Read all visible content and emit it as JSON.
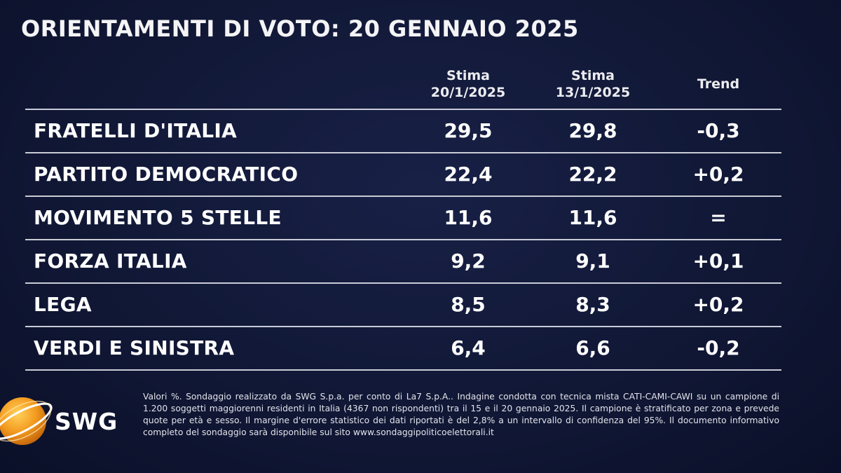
{
  "title": "ORIENTAMENTI DI VOTO: 20 GENNAIO 2025",
  "chart_data": {
    "type": "table",
    "title": "ORIENTAMENTI DI VOTO: 20 GENNAIO 2025",
    "columns": [
      {
        "line1": "Stima",
        "line2": "20/1/2025"
      },
      {
        "line1": "Stima",
        "line2": "13/1/2025"
      },
      {
        "line1": "Trend",
        "line2": ""
      }
    ],
    "rows": [
      {
        "party": "FRATELLI D'ITALIA",
        "current": "29,5",
        "previous": "29,8",
        "trend": "-0,3"
      },
      {
        "party": "PARTITO DEMOCRATICO",
        "current": "22,4",
        "previous": "22,2",
        "trend": "+0,2"
      },
      {
        "party": "MOVIMENTO 5 STELLE",
        "current": "11,6",
        "previous": "11,6",
        "trend": "="
      },
      {
        "party": "FORZA ITALIA",
        "current": "9,2",
        "previous": "9,1",
        "trend": "+0,1"
      },
      {
        "party": "LEGA",
        "current": "8,5",
        "previous": "8,3",
        "trend": "+0,2"
      },
      {
        "party": "VERDI E SINISTRA",
        "current": "6,4",
        "previous": "6,6",
        "trend": "-0,2"
      }
    ]
  },
  "logo": {
    "text": "SWG",
    "icon": "swg-globe-icon"
  },
  "footnote": "Valori %. Sondaggio realizzato da SWG S.p.a. per conto di La7 S.p.A.. Indagine condotta con tecnica mista CATI-CAMI-CAWI su un campione di 1.200 soggetti maggiorenni residenti in Italia (4367 non rispondenti) tra il 15 e il 20 gennaio 2025. Il campione è stratificato per zona e prevede quote per età e sesso. Il margine d'errore statistico dei dati riportati è del 2,8% a un intervallo di confidenza del 95%. Il documento informativo completo del sondaggio sarà disponibile sul sito www.sondaggipoliticoelettorali.it",
  "colors": {
    "background": "#111836",
    "text": "#ffffff",
    "divider": "#c9ccd6",
    "logo_orange": "#f39a1e"
  }
}
